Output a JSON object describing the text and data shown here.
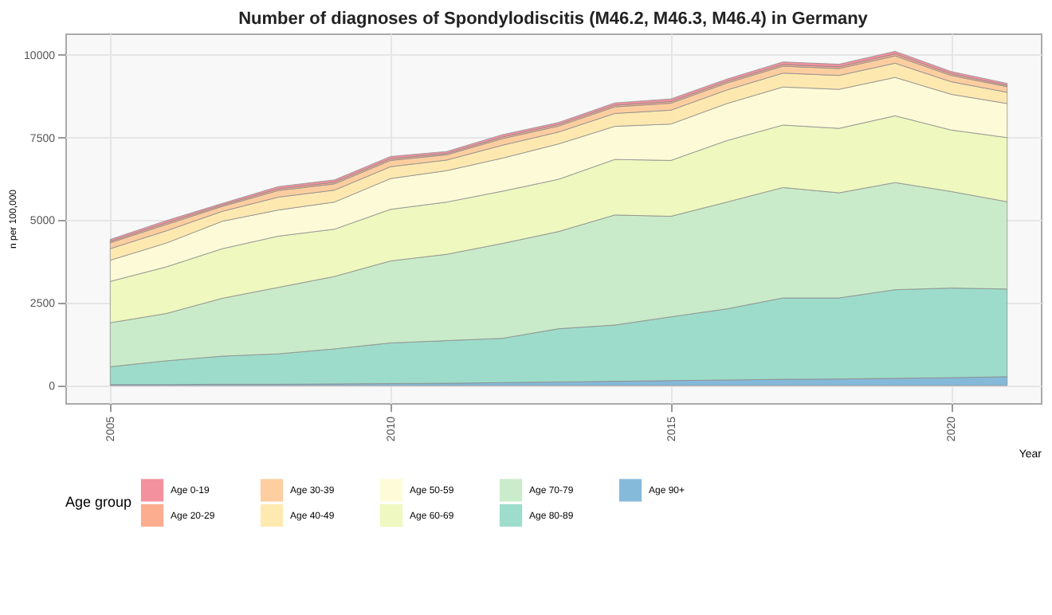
{
  "chart_data": {
    "type": "area",
    "stacked": true,
    "title": "Number of diagnoses of Spondylodiscitis (M46.2, M46.3, M46.4) in Germany",
    "xlabel": "Year",
    "ylabel": "n per 100,000",
    "legend_title": "Age group",
    "legend": "bottom",
    "grid": true,
    "x": [
      2005,
      2006,
      2007,
      2008,
      2009,
      2010,
      2011,
      2012,
      2013,
      2014,
      2015,
      2016,
      2017,
      2018,
      2019,
      2020,
      2021
    ],
    "xlim": [
      2004.2,
      2021.6
    ],
    "xticks": [
      2005,
      2010,
      2015,
      2020
    ],
    "ylim": [
      -530,
      10650
    ],
    "yticks": [
      0,
      2500,
      5000,
      7500,
      10000
    ],
    "series": [
      {
        "name": "Age 90+",
        "color": "#7fb6d9",
        "values": [
          30,
          30,
          40,
          40,
          50,
          60,
          70,
          90,
          110,
          130,
          150,
          170,
          190,
          200,
          220,
          240,
          270
        ]
      },
      {
        "name": "Age 80-89",
        "color": "#99dbc8",
        "values": [
          540,
          720,
          850,
          920,
          1060,
          1230,
          1290,
          1340,
          1610,
          1700,
          1930,
          2150,
          2460,
          2450,
          2680,
          2710,
          2650
        ]
      },
      {
        "name": "Age 70-79",
        "color": "#c7ebc7",
        "values": [
          1330,
          1430,
          1750,
          2010,
          2190,
          2480,
          2610,
          2870,
          2940,
          3330,
          3040,
          3230,
          3340,
          3180,
          3240,
          2920,
          2640
        ]
      },
      {
        "name": "Age 60-69",
        "color": "#eef8bd",
        "values": [
          1250,
          1410,
          1500,
          1550,
          1430,
          1560,
          1580,
          1580,
          1580,
          1680,
          1690,
          1860,
          1890,
          1950,
          2020,
          1860,
          1940
        ]
      },
      {
        "name": "Age 50-59",
        "color": "#fefcd6",
        "values": [
          640,
          720,
          830,
          790,
          820,
          930,
          950,
          1000,
          1070,
          1000,
          1100,
          1120,
          1150,
          1180,
          1160,
          1080,
          1030
        ]
      },
      {
        "name": "Age 40-49",
        "color": "#fee9ad",
        "values": [
          350,
          370,
          300,
          390,
          360,
          360,
          320,
          390,
          360,
          390,
          420,
          410,
          420,
          420,
          430,
          380,
          340
        ]
      },
      {
        "name": "Age 30-39",
        "color": "#fdcb9b",
        "values": [
          180,
          190,
          150,
          200,
          190,
          190,
          160,
          200,
          180,
          200,
          210,
          210,
          210,
          210,
          220,
          190,
          170
        ]
      },
      {
        "name": "Age 20-29",
        "color": "#fca98a",
        "values": [
          40,
          50,
          40,
          50,
          50,
          50,
          40,
          50,
          50,
          50,
          50,
          50,
          50,
          50,
          60,
          50,
          40
        ]
      },
      {
        "name": "Age 0-19",
        "color": "#f28b99",
        "values": [
          60,
          70,
          50,
          70,
          70,
          70,
          60,
          70,
          60,
          70,
          80,
          70,
          80,
          80,
          80,
          70,
          60
        ]
      }
    ]
  }
}
